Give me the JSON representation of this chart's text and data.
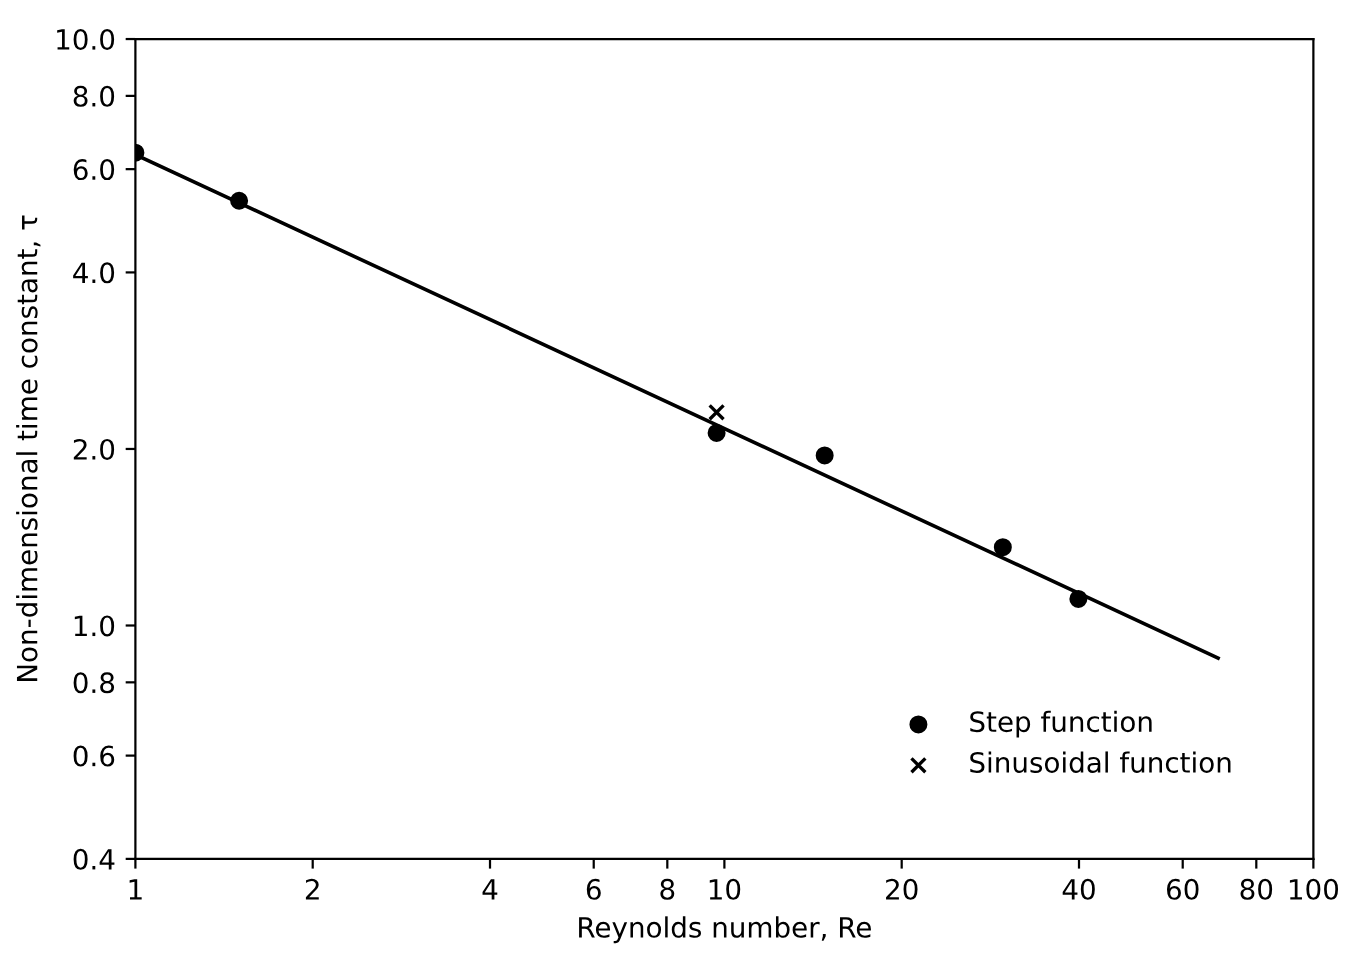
{
  "chart_data": {
    "type": "scatter",
    "xlabel": "Reynolds number, Re",
    "ylabel": "Non-dimensional time constant, τ",
    "log": "xy",
    "xlim": [
      1,
      100
    ],
    "ylim": [
      0.4,
      10
    ],
    "xticks": [
      1,
      2,
      4,
      6,
      8,
      10,
      20,
      40,
      60,
      80,
      100
    ],
    "yticks": [
      {
        "value": 0.4,
        "label": "0.4"
      },
      {
        "value": 0.6,
        "label": "0.6"
      },
      {
        "value": 0.8,
        "label": "0.8"
      },
      {
        "value": 1,
        "label": "1.0"
      },
      {
        "value": 2,
        "label": "2.0"
      },
      {
        "value": 4,
        "label": "4.0"
      },
      {
        "value": 6,
        "label": "6.0"
      },
      {
        "value": 8,
        "label": "8.0"
      },
      {
        "value": 10,
        "label": "10.0"
      }
    ],
    "grid": false,
    "legend": "lower right",
    "series": [
      {
        "type": "line",
        "color": "#000000",
        "x": [
          1,
          68.9
        ],
        "values": [
          6.35,
          0.88
        ],
        "marker": "none",
        "line_style": "solid"
      },
      {
        "name": "Step function",
        "color": "#000000",
        "marker": "circle",
        "x": [
          1.0,
          1.5,
          9.7,
          14.8,
          29.7,
          39.9
        ],
        "values": [
          6.4,
          5.3,
          2.13,
          1.95,
          1.36,
          1.11
        ]
      },
      {
        "name": "Sinusoidal function",
        "color": "#000000",
        "marker": "cross",
        "x": [
          9.7
        ],
        "values": [
          2.31
        ]
      }
    ]
  }
}
